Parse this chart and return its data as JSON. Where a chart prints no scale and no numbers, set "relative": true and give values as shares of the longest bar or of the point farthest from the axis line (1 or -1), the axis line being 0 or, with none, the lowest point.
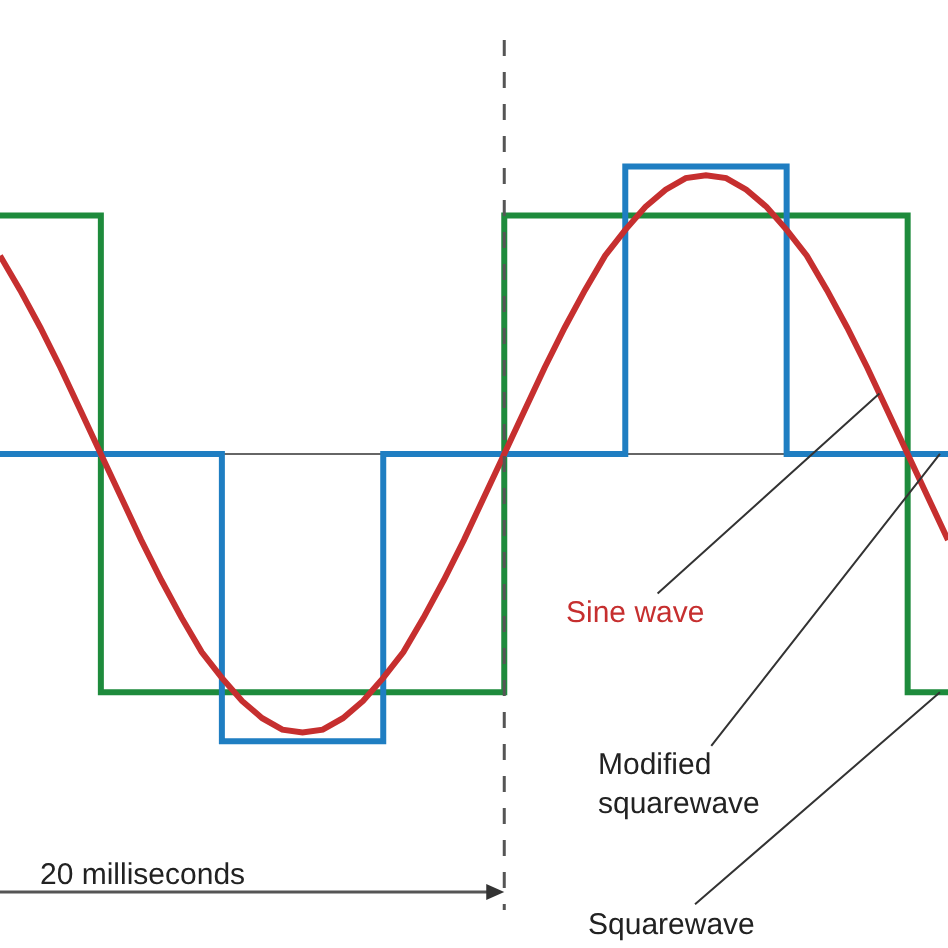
{
  "chart_data": {
    "type": "line",
    "relative": true,
    "tick_labels": false,
    "legend": false,
    "marker": "none",
    "line_style": "solid",
    "categories": [
      null,
      null,
      null,
      null,
      null,
      null,
      null,
      null,
      null,
      null,
      null,
      null,
      null,
      null,
      null,
      null,
      null,
      null,
      null,
      null,
      null,
      null,
      null,
      null,
      null,
      null,
      null,
      null,
      null,
      null,
      null,
      null,
      null,
      null,
      null,
      null,
      null,
      null,
      null,
      null,
      null,
      null,
      null,
      null,
      null,
      null,
      null,
      null
    ],
    "annotations": [
      "20 milliseconds"
    ],
    "series": [
      {
        "name": "Sine wave",
        "type": "line",
        "color": "#c62f2f",
        "values": [
          0.69,
          0.57,
          0.44,
          0.3,
          0.15,
          0,
          -0.15,
          -0.3,
          -0.44,
          -0.57,
          -0.69,
          -0.78,
          -0.86,
          -0.92,
          -0.96,
          -0.97,
          -0.96,
          -0.92,
          -0.86,
          -0.78,
          -0.69,
          -0.57,
          -0.44,
          -0.3,
          -0.15,
          0,
          0.15,
          0.3,
          0.44,
          0.57,
          0.69,
          0.78,
          0.86,
          0.92,
          0.96,
          0.97,
          0.96,
          0.92,
          0.86,
          0.78,
          0.69,
          0.57,
          0.44,
          0.3,
          0.15,
          0,
          -0.15,
          -0.3
        ]
      },
      {
        "name": "Modified squarewave",
        "type": "step",
        "color": "#1f7ec2",
        "values": [
          0,
          0,
          0,
          0,
          0,
          0,
          0,
          0,
          0,
          0,
          0,
          -1,
          -1,
          -1,
          -1,
          -1,
          -1,
          -1,
          -1,
          0,
          0,
          0,
          0,
          0,
          0,
          0,
          0,
          0,
          0,
          0,
          0,
          1,
          1,
          1,
          1,
          1,
          1,
          1,
          1,
          0,
          0,
          0,
          0,
          0,
          0,
          0,
          0,
          0
        ]
      },
      {
        "name": "Squarewave",
        "type": "step",
        "color": "#1e8b3c",
        "values": [
          0.83,
          0.83,
          0.83,
          0.83,
          0.83,
          -0.83,
          -0.83,
          -0.83,
          -0.83,
          -0.83,
          -0.83,
          -0.83,
          -0.83,
          -0.83,
          -0.83,
          -0.83,
          -0.83,
          -0.83,
          -0.83,
          -0.83,
          -0.83,
          -0.83,
          -0.83,
          -0.83,
          -0.83,
          0.83,
          0.83,
          0.83,
          0.83,
          0.83,
          0.83,
          0.83,
          0.83,
          0.83,
          0.83,
          0.83,
          0.83,
          0.83,
          0.83,
          0.83,
          0.83,
          0.83,
          0.83,
          0.83,
          0.83,
          -0.83,
          -0.83,
          -0.83
        ]
      }
    ]
  }
}
